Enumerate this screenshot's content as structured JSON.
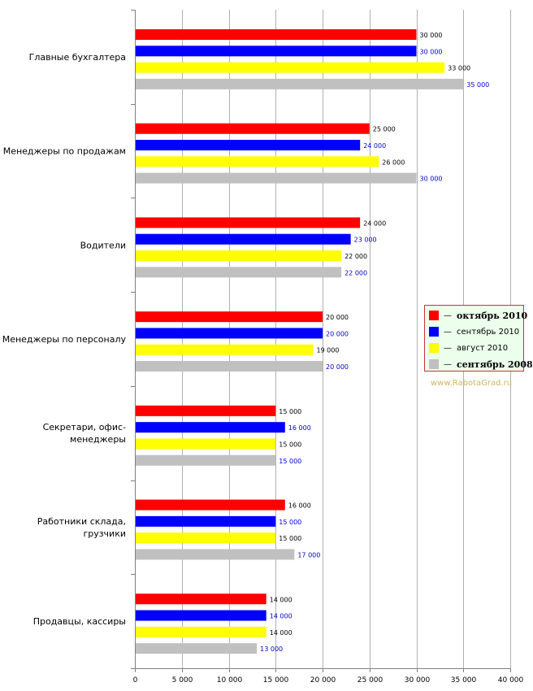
{
  "chart_data": {
    "type": "bar",
    "orientation": "horizontal",
    "categories": [
      "Главные бухгалтера",
      "Менеджеры по продажам",
      "Водители",
      "Менеджеры по персоналу",
      "Секретари, офис-менеджеры",
      "Работники склада, грузчики",
      "Продавцы, кассиры"
    ],
    "series": [
      {
        "name": "октябрь 2010",
        "color": "#ff0000",
        "label_color": "#000000",
        "values": [
          30000,
          25000,
          24000,
          20000,
          15000,
          16000,
          14000
        ],
        "labels": [
          "30 000",
          "25 000",
          "24 000",
          "20 000",
          "15 000",
          "16 000",
          "14 000"
        ]
      },
      {
        "name": "сентябрь 2010",
        "color": "#0000ff",
        "label_color": "#0000cc",
        "values": [
          30000,
          24000,
          23000,
          20000,
          16000,
          15000,
          14000
        ],
        "labels": [
          "30 000",
          "24 000",
          "23 000",
          "20 000",
          "16 000",
          "15 000",
          "14 000"
        ]
      },
      {
        "name": "август 2010",
        "color": "#ffff00",
        "label_color": "#000000",
        "values": [
          33000,
          26000,
          22000,
          19000,
          15000,
          15000,
          14000
        ],
        "labels": [
          "33 000",
          "26 000",
          "22 000",
          "19 000",
          "15 000",
          "15 000",
          "14 000"
        ]
      },
      {
        "name": "сентябрь 2008",
        "color": "#c0c0c0",
        "label_color": "#0000cc",
        "values": [
          35000,
          30000,
          22000,
          20000,
          15000,
          17000,
          13000
        ],
        "labels": [
          "35 000",
          "30 000",
          "22 000",
          "20 000",
          "15 000",
          "17 000",
          "13 000"
        ]
      }
    ],
    "xlim": [
      0,
      40000
    ],
    "x_ticks": [
      0,
      5000,
      10000,
      15000,
      20000,
      25000,
      30000,
      35000,
      40000
    ],
    "x_tick_labels": [
      "0",
      "5 000",
      "10 000",
      "15 000",
      "20 000",
      "25 000",
      "30 000",
      "35 000",
      "40 000"
    ],
    "grid": true,
    "legend_position": "right"
  },
  "legend": {
    "items": [
      {
        "label": "октябрь 2010",
        "color": "#ff0000",
        "bold": true
      },
      {
        "label": "сентябрь 2010",
        "color": "#0000ff",
        "bold": false
      },
      {
        "label": "август 2010",
        "color": "#ffff00",
        "bold": false
      },
      {
        "label": "сентябрь 2008",
        "color": "#c0c0c0",
        "bold": true
      }
    ],
    "dash": "—"
  },
  "watermark": "www.RabotaGrad.ru"
}
